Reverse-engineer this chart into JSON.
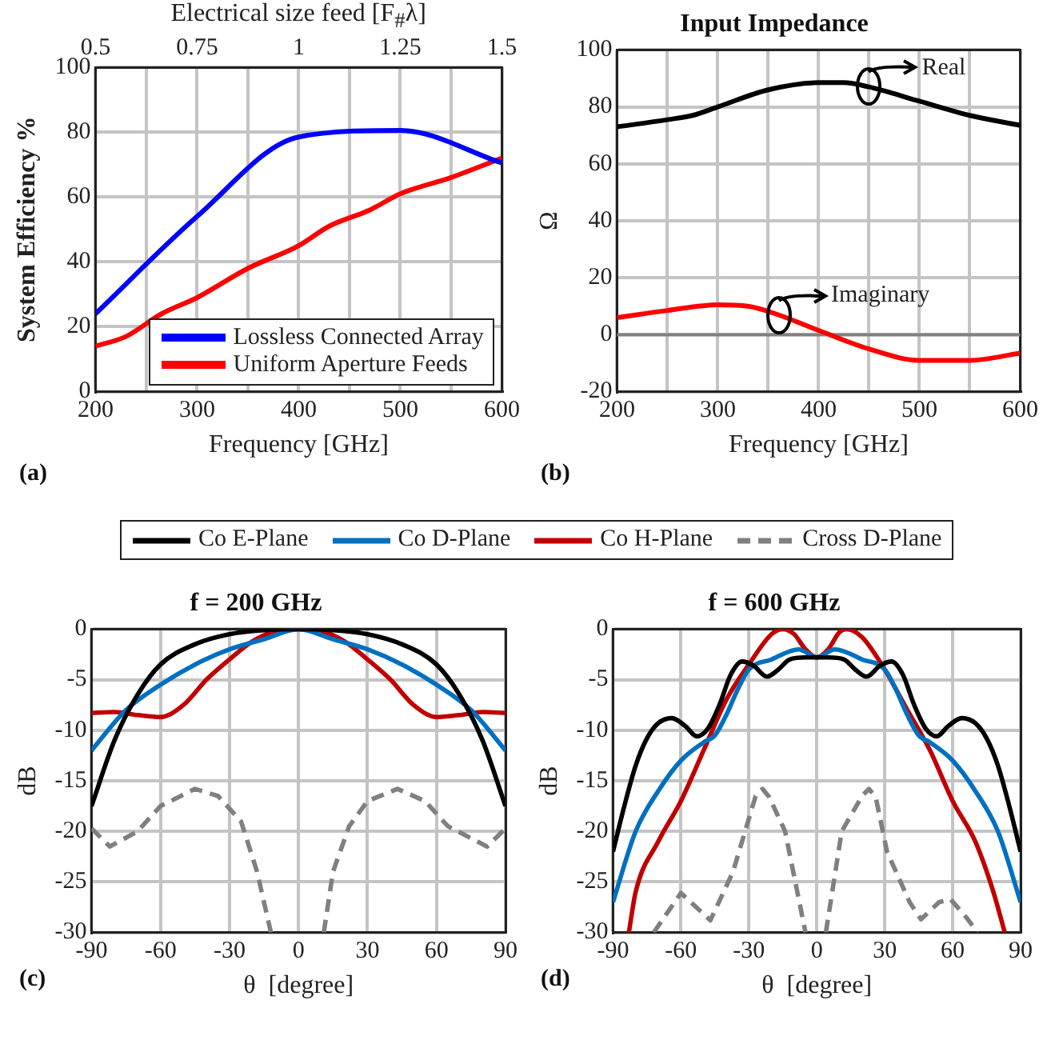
{
  "chart_data": [
    {
      "type": "line",
      "xlabel": "Frequency [GHz]",
      "ylabel": "System Efficiency %",
      "x2label": "Electrical size feed [F$_{#}$λ]",
      "xlim": [
        200,
        600
      ],
      "xticks": [
        200,
        {
          "value": 250,
          "label": null
        },
        300,
        {
          "value": 350,
          "label": null
        },
        400,
        {
          "value": 450,
          "label": null
        },
        500,
        {
          "value": 550,
          "label": null
        },
        600
      ],
      "x2lim": [
        0.5,
        1.5
      ],
      "x2ticks": [
        0.5,
        0.75,
        1,
        1.25,
        1.5
      ],
      "ylim": [
        0,
        100
      ],
      "yticks": [
        0,
        20,
        40,
        60,
        80,
        100
      ],
      "grid": true,
      "legend": "bottom right",
      "annotations": [
        "(a)"
      ],
      "series": [
        {
          "name": "Lossless Connected Array",
          "color": "#0000ff",
          "x": [
            200,
            300,
            400,
            500,
            600
          ],
          "values": [
            24,
            54,
            78.5,
            80.5,
            70.5
          ]
        },
        {
          "name": "Uniform Aperture Feeds",
          "color": "#ff0000",
          "x": [
            200,
            230,
            265,
            300,
            350,
            400,
            430,
            470,
            500,
            550,
            600
          ],
          "values": [
            14,
            17,
            24,
            29,
            38,
            45,
            51,
            56,
            61,
            66,
            72
          ]
        }
      ]
    },
    {
      "type": "line",
      "title": "Input Impedance",
      "xlabel": "Frequency [GHz]",
      "ylabel": "Ω",
      "xlim": [
        200,
        600
      ],
      "xticks": [
        200,
        {
          "value": 250,
          "label": null
        },
        300,
        {
          "value": 350,
          "label": null
        },
        400,
        {
          "value": 450,
          "label": null
        },
        500,
        {
          "value": 550,
          "label": null
        },
        600
      ],
      "ylim": [
        -20,
        100
      ],
      "yticks": [
        -20,
        0,
        20,
        40,
        60,
        80,
        100
      ],
      "grid": true,
      "annotations": [
        "(b)",
        {
          "text": "Real",
          "x": 450,
          "y": 87
        },
        {
          "text": "Imaginary",
          "x": 360,
          "y": 7
        }
      ],
      "ref_lines": [
        {
          "axis": "y",
          "value": 0,
          "color": "#808080"
        }
      ],
      "series": [
        {
          "color": "#000000",
          "x": [
            200,
            250,
            275,
            300,
            350,
            400,
            425,
            450,
            500,
            550,
            600
          ],
          "values": [
            73,
            75.5,
            77,
            80,
            86,
            88.5,
            88.5,
            87,
            82,
            77,
            73.5
          ]
        },
        {
          "color": "#ff0000",
          "x": [
            200,
            250,
            300,
            330,
            360,
            400,
            450,
            500,
            550,
            600
          ],
          "values": [
            6,
            8.5,
            10.5,
            10,
            7,
            1.5,
            -5,
            -9,
            -9,
            -6.5
          ]
        }
      ]
    },
    {
      "type": "line",
      "title": "f = 200 GHz",
      "xlabel": "θ  [degree]",
      "ylabel": "dB",
      "xlim": [
        -90,
        90
      ],
      "xticks": [
        -90,
        -60,
        -30,
        0,
        30,
        60,
        90
      ],
      "ylim": [
        -30,
        0
      ],
      "yticks": [
        -30,
        -25,
        -20,
        -15,
        -10,
        -5,
        0
      ],
      "grid": true,
      "legend": "top",
      "annotations": [
        "(c)"
      ],
      "series": [
        {
          "name": "Co  E-Plane",
          "color": "#000000",
          "x": [
            -90,
            -80,
            -70,
            -60,
            -45,
            -30,
            -15,
            0,
            15,
            30,
            45,
            60,
            70,
            80,
            90
          ],
          "values": [
            -17.5,
            -11,
            -6.5,
            -3.5,
            -1.5,
            -0.5,
            -0.1,
            0,
            -0.1,
            -0.5,
            -1.5,
            -3.5,
            -6.5,
            -11,
            -17.5
          ]
        },
        {
          "name": "Co  D-Plane",
          "color": "#0070c0",
          "x": [
            -90,
            -75,
            -60,
            -45,
            -30,
            -15,
            0,
            15,
            30,
            45,
            60,
            75,
            90
          ],
          "values": [
            -12,
            -8,
            -5.5,
            -3.5,
            -2,
            -1,
            0,
            -1,
            -2,
            -3.5,
            -5.5,
            -8,
            -12
          ]
        },
        {
          "name": "Co  H-Plane",
          "color": "#c00000",
          "x": [
            -90,
            -80,
            -70,
            -60,
            -50,
            -40,
            -30,
            -20,
            -10,
            0,
            10,
            20,
            30,
            40,
            50,
            60,
            70,
            80,
            90
          ],
          "values": [
            -8.3,
            -8.2,
            -8.5,
            -8.7,
            -7.5,
            -5,
            -3,
            -1.2,
            -0.2,
            0,
            -0.2,
            -1.2,
            -3,
            -5,
            -7.5,
            -8.7,
            -8.5,
            -8.2,
            -8.3
          ]
        },
        {
          "name": "Cross  D-Plane",
          "color": "#808080",
          "line_style": "dashed",
          "x": [
            -90,
            -82,
            -70,
            -60,
            -45,
            -35,
            -25,
            -18,
            -12,
            0,
            11,
            15,
            22,
            30,
            43,
            55,
            65,
            82,
            90
          ],
          "values": [
            -19.7,
            -21.5,
            -20,
            -17.5,
            -15.8,
            -16.5,
            -19,
            -24,
            -30,
            null,
            -30,
            -24,
            -19.5,
            -17,
            -15.8,
            -17,
            -19.5,
            -21.5,
            -19.7
          ]
        }
      ]
    },
    {
      "type": "line",
      "title": "f = 600 GHz",
      "xlabel": "θ  [degree]",
      "ylabel": "dB",
      "xlim": [
        -90,
        90
      ],
      "xticks": [
        -90,
        -60,
        -30,
        0,
        30,
        60,
        90
      ],
      "ylim": [
        -30,
        0
      ],
      "yticks": [
        -30,
        -25,
        -20,
        -15,
        -10,
        -5,
        0
      ],
      "grid": true,
      "annotations": [
        "(d)"
      ],
      "series": [
        {
          "color": "#000000",
          "x": [
            -90,
            -85,
            -80,
            -75,
            -70,
            -64,
            -58,
            -53,
            -48,
            -43,
            -38,
            -33,
            -28,
            -22,
            -17,
            -12,
            -5,
            0,
            5,
            12,
            17,
            22,
            28,
            33,
            38,
            43,
            48,
            53,
            58,
            64,
            70,
            75,
            80,
            85,
            90
          ],
          "values": [
            -22,
            -17.5,
            -13.5,
            -10.8,
            -9.3,
            -8.8,
            -9.6,
            -10.6,
            -9.8,
            -7.5,
            -4.5,
            -3.2,
            -3.6,
            -4.7,
            -4,
            -3,
            -2.8,
            -2.8,
            -2.8,
            -3,
            -4,
            -4.7,
            -3.6,
            -3.2,
            -4.5,
            -7.5,
            -9.8,
            -10.6,
            -9.6,
            -8.8,
            -9.3,
            -10.8,
            -13.5,
            -17.5,
            -22
          ]
        },
        {
          "color": "#0070c0",
          "x": [
            -90,
            -80,
            -70,
            -60,
            -50,
            -45,
            -40,
            -35,
            -30,
            -20,
            -8,
            0,
            8,
            20,
            30,
            35,
            40,
            45,
            50,
            60,
            70,
            80,
            90
          ],
          "values": [
            -27,
            -20,
            -16,
            -13,
            -11.2,
            -10.5,
            -8.5,
            -6,
            -4,
            -3,
            -2,
            -2.8,
            -2,
            -3,
            -4,
            -6,
            -8.5,
            -10.5,
            -11.2,
            -13,
            -16,
            -20,
            -27
          ]
        },
        {
          "color": "#c00000",
          "x": [
            -83,
            -80,
            -70,
            -60,
            -50,
            -40,
            -30,
            -20,
            -15,
            -10,
            -5,
            0,
            5,
            10,
            13,
            20,
            30,
            40,
            50,
            60,
            70,
            78,
            83
          ],
          "values": [
            -30,
            -26,
            -21,
            -17,
            -12,
            -7,
            -3.5,
            -0.5,
            0,
            -0.5,
            -2,
            -2.8,
            -2,
            -0.3,
            0,
            -0.8,
            -4,
            -8,
            -12,
            -17,
            -21,
            -26,
            -30
          ]
        },
        {
          "color": "#808080",
          "line_style": "dashed",
          "x": [
            -72,
            -60,
            -47,
            -37,
            -27,
            -24,
            -21,
            -14,
            -5,
            0,
            4,
            11,
            20,
            23,
            26,
            31,
            41,
            46,
            54,
            59,
            66,
            71
          ],
          "values": [
            -30,
            -26.1,
            -28.8,
            -24,
            -16.5,
            -15.8,
            -16.6,
            -20,
            -30,
            null,
            -30,
            -20,
            -16.5,
            -15.8,
            -16.6,
            -22,
            -27,
            -28.7,
            -27,
            -26.7,
            -28.5,
            -30
          ]
        }
      ]
    }
  ]
}
